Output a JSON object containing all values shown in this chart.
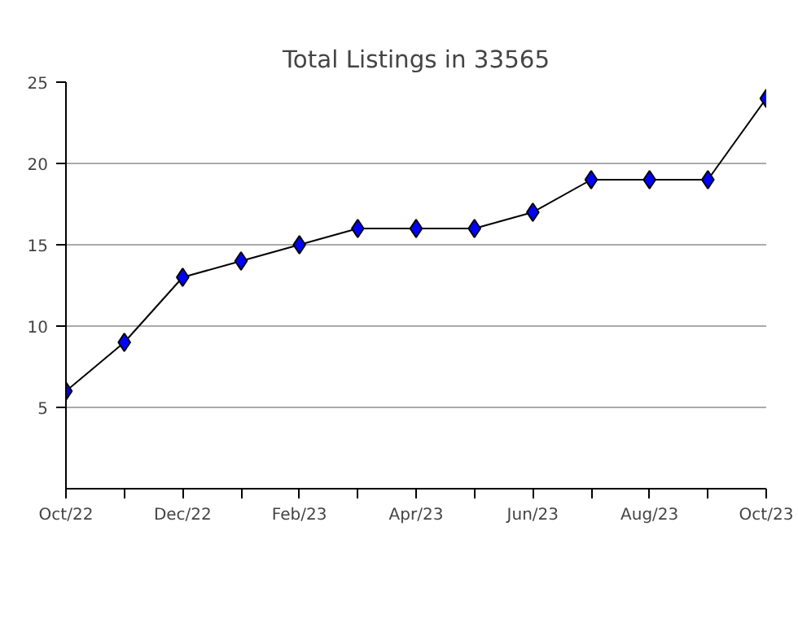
{
  "chart_data": {
    "type": "line",
    "title": "Total Listings in 33565",
    "categories": [
      "Oct/22",
      null,
      "Dec/22",
      null,
      "Feb/23",
      null,
      "Apr/23",
      null,
      "Jun/23",
      null,
      "Aug/23",
      null,
      "Oct/23"
    ],
    "series": [
      {
        "color": "#0000ff",
        "values": [
          6,
          9,
          13,
          14,
          15,
          16,
          16,
          16,
          17,
          19,
          19,
          19,
          24
        ]
      }
    ],
    "ylim": [
      0,
      25
    ],
    "yticks": [
      5,
      10,
      15,
      20,
      25
    ],
    "grid": "y",
    "marker": "diamond",
    "line_style": "solid"
  }
}
